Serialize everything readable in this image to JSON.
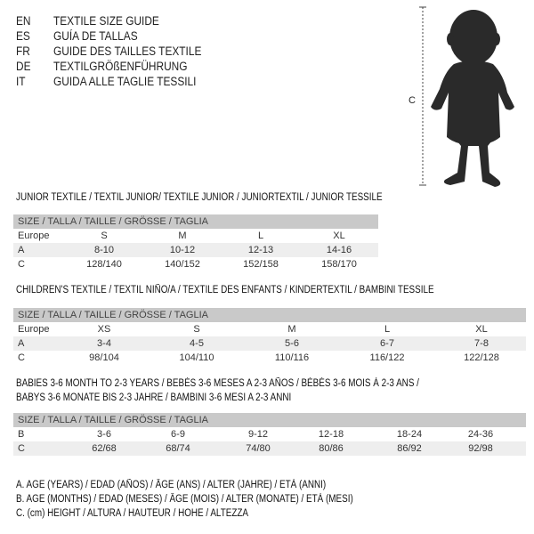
{
  "languages": [
    {
      "code": "EN",
      "title": "TEXTILE SIZE GUIDE"
    },
    {
      "code": "ES",
      "title": "GUÍA DE TALLAS"
    },
    {
      "code": "FR",
      "title": "GUIDE DES TAILLES TEXTILE"
    },
    {
      "code": "DE",
      "title": "TEXTILGRÖßENFÜHRUNG"
    },
    {
      "code": "IT",
      "title": "GUIDA ALLE TAGLIE TESSILI"
    }
  ],
  "figure": {
    "label": "C",
    "color": "#2a2a2a"
  },
  "junior": {
    "title": "JUNIOR TEXTILE / TEXTIL JUNIOR/ TEXTILE JUNIOR / JUNIORTEXTIL / JUNIOR TESSILE",
    "header": "SIZE / TALLA / TAILLE / GRÖSSE / TAGLIA",
    "rows": [
      {
        "label": "Europe",
        "cells": [
          "S",
          "M",
          "L",
          "XL"
        ]
      },
      {
        "label": "A",
        "cells": [
          "8-10",
          "10-12",
          "12-13",
          "14-16"
        ]
      },
      {
        "label": "C",
        "cells": [
          "128/140",
          "140/152",
          "152/158",
          "158/170"
        ]
      }
    ]
  },
  "children": {
    "title": "CHILDREN'S TEXTILE / TEXTIL NIÑO/A / TEXTILE DES ENFANTS / KINDERTEXTIL / BAMBINI TESSILE",
    "header": "SIZE / TALLA / TAILLE / GRÖSSE / TAGLIA",
    "rows": [
      {
        "label": "Europe",
        "cells": [
          "XS",
          "S",
          "M",
          "L",
          "XL"
        ]
      },
      {
        "label": "A",
        "cells": [
          "3-4",
          "4-5",
          "5-6",
          "6-7",
          "7-8"
        ]
      },
      {
        "label": "C",
        "cells": [
          "98/104",
          "104/110",
          "110/116",
          "116/122",
          "122/128"
        ]
      }
    ]
  },
  "babies": {
    "title_line1": "BABIES 3-6 MONTH TO 2-3 YEARS / BEBÉS 3-6 MESES A 2-3 AÑOS / BÉBÉS 3-6 MOIS À 2-3 ANS /",
    "title_line2": "BABYS 3-6 MONATE BIS 2-3 JAHRE / BAMBINI 3-6 MESI A 2-3 ANNI",
    "header": "SIZE / TALLA / TAILLE / GRÖSSE / TAGLIA",
    "rows": [
      {
        "label": "B",
        "cells": [
          "3-6",
          "6-9",
          "9-12",
          "12-18",
          "18-24",
          "24-36"
        ]
      },
      {
        "label": "C",
        "cells": [
          "62/68",
          "68/74",
          "74/80",
          "80/86",
          "86/92",
          "92/98"
        ]
      }
    ]
  },
  "legend": [
    "A. AGE (YEARS) / EDAD (AÑOS) / ÂGE (ANS) / ALTER (JAHRE) / ETÀ (ANNI)",
    "B. AGE (MONTHS) / EDAD (MESES) / ÂGE (MOIS) / ALTER (MONATE) / ETÀ (MESI)",
    "C. (cm) HEIGHT / ALTURA / HAUTEUR / HÖHE / ALTEZZA"
  ]
}
